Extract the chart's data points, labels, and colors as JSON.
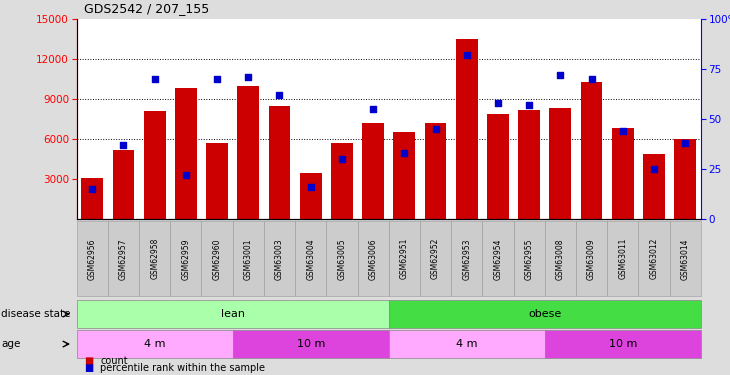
{
  "title": "GDS2542 / 207_155",
  "samples": [
    "GSM62956",
    "GSM62957",
    "GSM62958",
    "GSM62959",
    "GSM62960",
    "GSM63001",
    "GSM63003",
    "GSM63004",
    "GSM63005",
    "GSM63006",
    "GSM62951",
    "GSM62952",
    "GSM62953",
    "GSM62954",
    "GSM62955",
    "GSM63008",
    "GSM63009",
    "GSM63011",
    "GSM63012",
    "GSM63014"
  ],
  "counts": [
    3100,
    5200,
    8100,
    9800,
    5700,
    10000,
    8500,
    3500,
    5700,
    7200,
    6500,
    7200,
    13500,
    7900,
    8200,
    8300,
    10300,
    6800,
    4900,
    6000
  ],
  "percentiles": [
    15,
    37,
    70,
    22,
    70,
    71,
    62,
    16,
    30,
    55,
    33,
    45,
    82,
    58,
    57,
    72,
    70,
    44,
    25,
    38
  ],
  "bar_color": "#cc0000",
  "dot_color": "#0000cc",
  "ylim_left": [
    0,
    15000
  ],
  "ylim_right": [
    0,
    100
  ],
  "yticks_left": [
    3000,
    6000,
    9000,
    12000,
    15000
  ],
  "yticks_right": [
    0,
    25,
    50,
    75,
    100
  ],
  "disease_state_groups": [
    {
      "label": "lean",
      "start": 0,
      "end": 10,
      "color": "#aaffaa"
    },
    {
      "label": "obese",
      "start": 10,
      "end": 20,
      "color": "#44dd44"
    }
  ],
  "age_groups": [
    {
      "label": "4 m",
      "start": 0,
      "end": 5,
      "color": "#ffaaff"
    },
    {
      "label": "10 m",
      "start": 5,
      "end": 10,
      "color": "#dd44dd"
    },
    {
      "label": "4 m",
      "start": 10,
      "end": 15,
      "color": "#ffaaff"
    },
    {
      "label": "10 m",
      "start": 15,
      "end": 20,
      "color": "#dd44dd"
    }
  ],
  "legend_count_label": "count",
  "legend_pct_label": "percentile rank within the sample",
  "disease_state_label": "disease state",
  "age_label": "age",
  "background_color": "#dddddd",
  "plot_bg_color": "#ffffff",
  "tick_bg_color": "#cccccc"
}
